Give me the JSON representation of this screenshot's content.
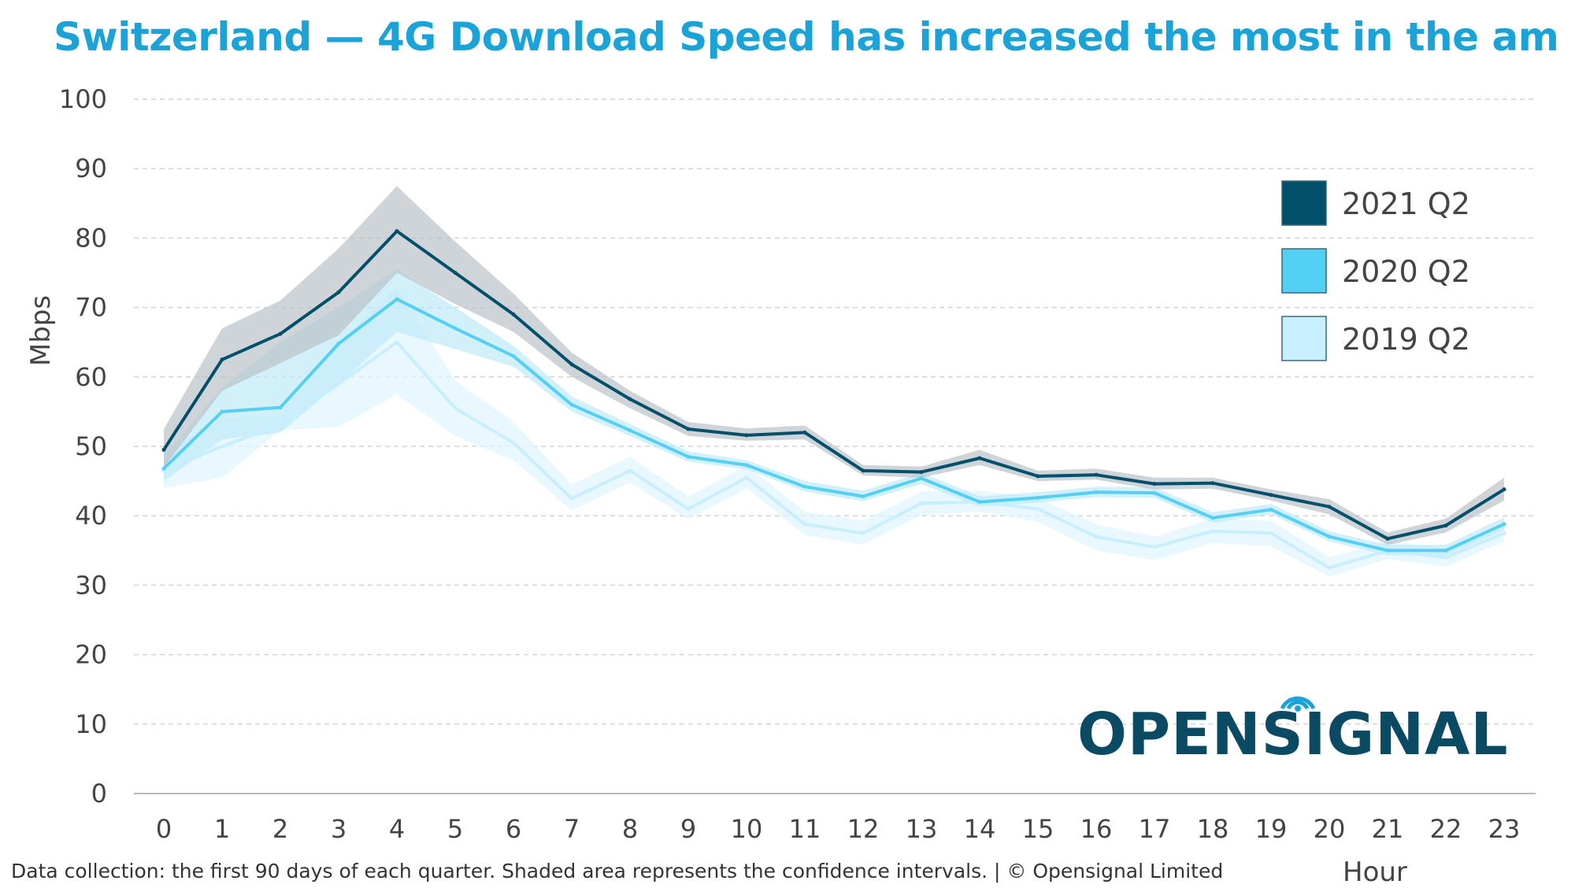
{
  "header": {
    "title": "Switzerland — 4G Download Speed has increased the most in the am"
  },
  "footer": {
    "note": "Data collection: the first 90 days of each quarter. Shaded area represents the confidence intervals. | © Opensignal Limited"
  },
  "brand": {
    "logo_text": "OPENSIGNAL",
    "color": "#0b4a63"
  },
  "chart_data": {
    "type": "line",
    "xlabel": "Hour",
    "ylabel": "Mbps",
    "ylim": [
      0,
      100
    ],
    "yticks": [
      0,
      10,
      20,
      30,
      40,
      50,
      60,
      70,
      80,
      90,
      100
    ],
    "grid": true,
    "legend_position": "top-right",
    "x": [
      0,
      1,
      2,
      3,
      4,
      5,
      6,
      7,
      8,
      9,
      10,
      11,
      12,
      13,
      14,
      15,
      16,
      17,
      18,
      19,
      20,
      21,
      22,
      23
    ],
    "series": [
      {
        "name": "2021 Q2",
        "color": "#004f6b",
        "band_color": "#b9c2c8",
        "values": [
          49.5,
          62.5,
          66.2,
          72.2,
          81.0,
          75.0,
          69.0,
          61.8,
          56.8,
          52.5,
          51.6,
          52.0,
          46.5,
          46.3,
          48.3,
          45.7,
          45.9,
          44.6,
          44.7,
          43.0,
          41.3,
          36.7,
          38.6,
          43.8
        ],
        "lower": [
          47.0,
          58.0,
          62.0,
          66.0,
          75.0,
          70.5,
          66.5,
          60.0,
          55.5,
          51.5,
          50.8,
          51.0,
          45.8,
          45.5,
          47.3,
          45.0,
          45.2,
          43.8,
          43.9,
          42.2,
          40.2,
          35.8,
          37.6,
          42.2
        ],
        "upper": [
          52.5,
          67.0,
          71.0,
          78.5,
          87.5,
          79.5,
          72.0,
          63.5,
          58.0,
          53.5,
          52.6,
          53.0,
          47.3,
          47.1,
          49.5,
          46.5,
          46.8,
          45.5,
          45.5,
          43.8,
          42.4,
          37.6,
          39.6,
          45.5
        ]
      },
      {
        "name": "2020 Q2",
        "color": "#55d0f5",
        "band_color": "#bfeaf8",
        "values": [
          46.8,
          55.0,
          55.6,
          64.8,
          71.2,
          67.0,
          63.0,
          56.0,
          52.3,
          48.5,
          47.3,
          44.2,
          42.8,
          45.4,
          42.0,
          42.6,
          43.4,
          43.3,
          39.7,
          40.9,
          37.0,
          35.0,
          35.0,
          38.8
        ],
        "lower": [
          45.0,
          51.0,
          52.0,
          59.0,
          66.5,
          64.0,
          61.5,
          55.0,
          51.5,
          47.8,
          46.7,
          43.5,
          42.1,
          44.6,
          41.3,
          41.9,
          42.7,
          42.6,
          39.0,
          40.2,
          36.3,
          34.3,
          34.3,
          37.9
        ],
        "upper": [
          48.5,
          58.5,
          65.0,
          70.0,
          75.5,
          70.0,
          64.5,
          57.2,
          53.2,
          49.3,
          48.0,
          45.0,
          43.6,
          46.2,
          42.8,
          43.4,
          44.2,
          44.1,
          40.5,
          41.7,
          37.8,
          35.8,
          35.8,
          39.8
        ]
      },
      {
        "name": "2019 Q2",
        "color": "#c8efff",
        "band_color": "#def5fd",
        "values": [
          46.5,
          50.0,
          53.0,
          59.0,
          65.0,
          55.5,
          50.5,
          42.5,
          46.5,
          41.0,
          45.5,
          38.8,
          37.5,
          41.8,
          42.0,
          41.0,
          37.0,
          35.5,
          37.8,
          37.5,
          32.5,
          35.0,
          34.0,
          37.5
        ],
        "lower": [
          44.0,
          45.5,
          52.3,
          52.8,
          57.5,
          51.5,
          48.0,
          40.8,
          44.8,
          39.5,
          44.0,
          37.2,
          35.9,
          40.1,
          40.6,
          39.1,
          35.0,
          33.6,
          36.1,
          35.6,
          31.2,
          33.8,
          32.7,
          36.3
        ],
        "upper": [
          49.0,
          54.0,
          54.5,
          65.0,
          73.0,
          59.5,
          53.5,
          44.5,
          48.5,
          42.8,
          47.2,
          40.6,
          39.3,
          43.5,
          43.6,
          42.6,
          38.8,
          37.0,
          39.6,
          39.3,
          34.0,
          36.4,
          35.3,
          38.8
        ]
      }
    ]
  }
}
